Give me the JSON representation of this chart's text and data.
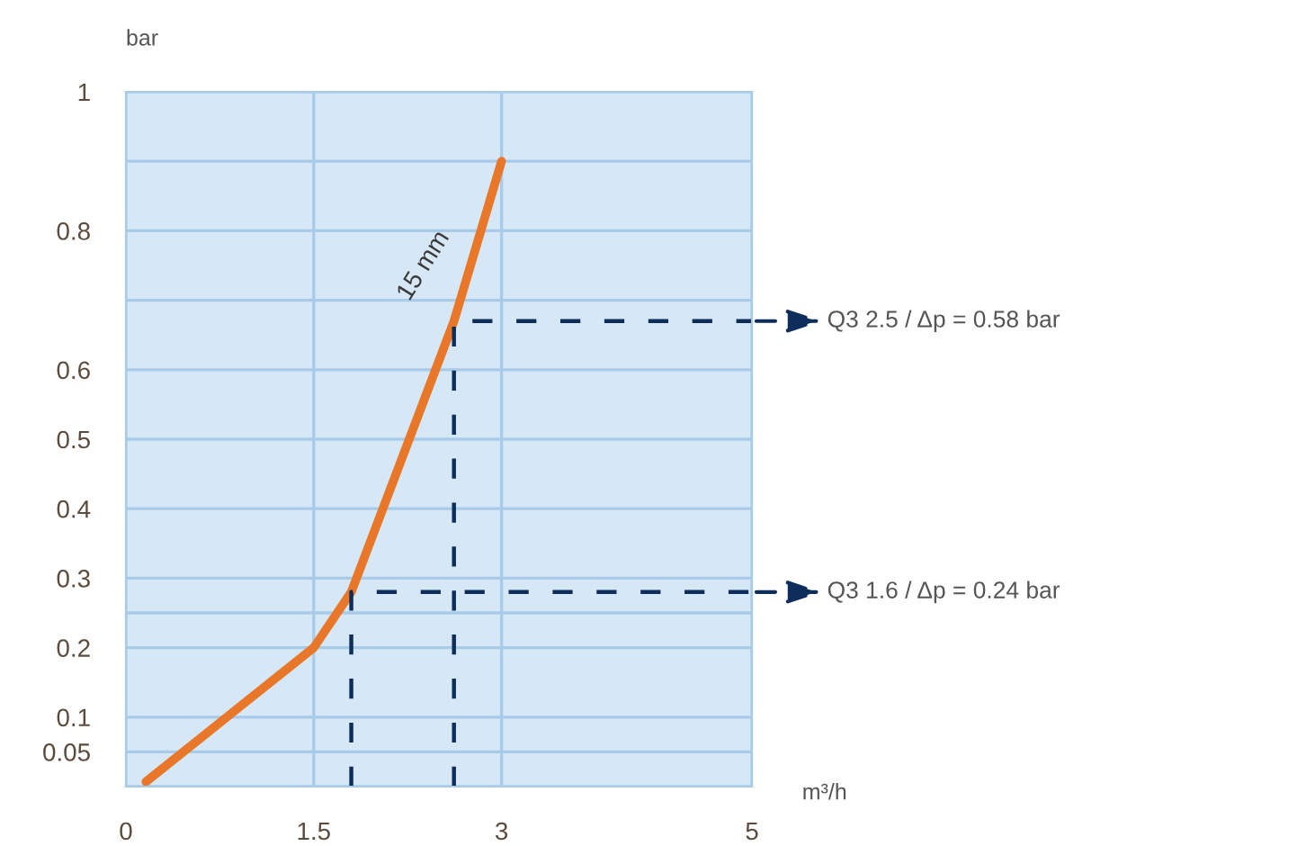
{
  "chart_data": {
    "type": "line",
    "xlabel": "m³/h",
    "ylabel": "bar",
    "series": [
      {
        "name": "15 mm",
        "color": "#e8772a",
        "x": [
          0.16,
          1.5,
          1.8,
          2.62,
          3.0
        ],
        "values": [
          0.007,
          0.2,
          0.28,
          0.67,
          0.9
        ]
      },
      {
        "color": "#0d2d5a",
        "line_style": "dashed",
        "x": [
          2.62,
          2.62,
          5
        ],
        "values": [
          0,
          0.67,
          0.67
        ]
      },
      {
        "color": "#0d2d5a",
        "line_style": "dashed",
        "x": [
          1.8,
          1.8,
          5
        ],
        "values": [
          0,
          0.28,
          0.28
        ]
      }
    ],
    "xlim": [
      0,
      5
    ],
    "xticks": [
      0,
      1.5,
      3,
      5
    ],
    "ylim": [
      0,
      1
    ],
    "yticks": [
      {
        "value": 0,
        "label": null
      },
      0.05,
      0.1,
      0.2,
      {
        "value": 0.25,
        "label": null
      },
      0.3,
      0.4,
      0.5,
      0.6,
      {
        "value": 0.7,
        "label": null
      },
      0.8,
      {
        "value": 0.9,
        "label": null
      },
      1
    ],
    "annotations": [
      "Q3 2.5 / Δp = 0.58 bar",
      "Q3 1.6 / Δp = 0.24 bar"
    ],
    "grid": true,
    "marker": "none",
    "line_style": "solid",
    "legend": false
  }
}
